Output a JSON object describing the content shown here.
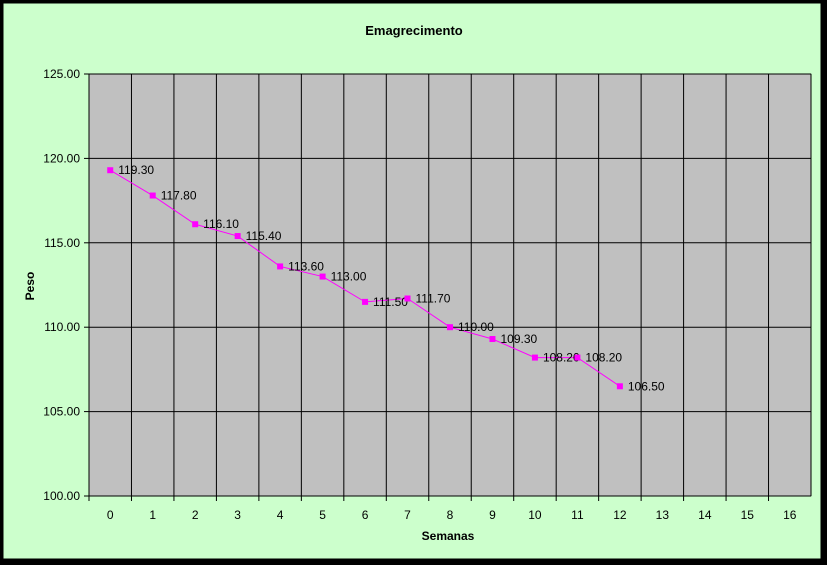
{
  "chart_data": {
    "type": "line",
    "title": "Emagrecimento",
    "xlabel": "Semanas",
    "ylabel": "Peso",
    "x": [
      0,
      1,
      2,
      3,
      4,
      5,
      6,
      7,
      8,
      9,
      10,
      11,
      12
    ],
    "series": [
      {
        "values": [
          119.3,
          117.8,
          116.1,
          115.4,
          113.6,
          113.0,
          111.5,
          111.7,
          110.0,
          109.3,
          108.2,
          108.2,
          106.5
        ],
        "data_labels": [
          "119.30",
          "117.80",
          "116.10",
          "115.40",
          "113.60",
          "113.00",
          "111.50",
          "111.70",
          "110.00",
          "109.30",
          "108.20",
          "108.20",
          "106.50"
        ],
        "color": "#FF00FF"
      }
    ],
    "xticks": [
      "0",
      "1",
      "2",
      "3",
      "4",
      "5",
      "6",
      "7",
      "8",
      "9",
      "10",
      "11",
      "12",
      "13",
      "14",
      "15",
      "16"
    ],
    "yticks": [
      "100.00",
      "105.00",
      "110.00",
      "115.00",
      "120.00",
      "125.00"
    ],
    "xlim": [
      0,
      16
    ],
    "ylim": [
      100,
      125
    ],
    "grid": true,
    "legend": "none",
    "colors": {
      "background": "#CCFFCC",
      "plot_area": "#C0C0C0",
      "gridlines": "#000000",
      "series": "#FF00FF"
    }
  }
}
